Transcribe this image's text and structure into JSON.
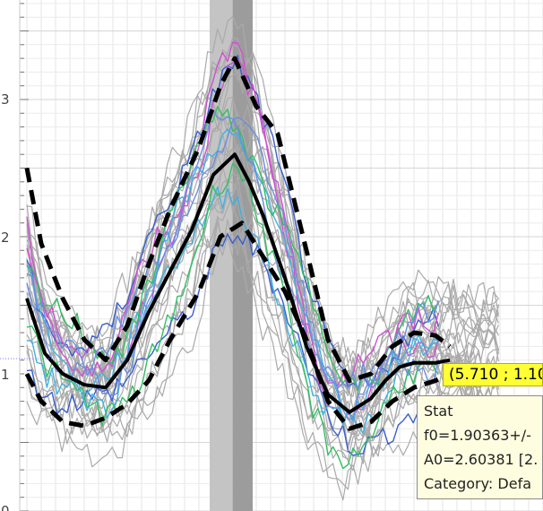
{
  "chart_data": {
    "type": "line",
    "title": "",
    "xlabel": "",
    "ylabel": "",
    "xlim": [
      0.0,
      7.0
    ],
    "ylim": [
      0,
      3.6
    ],
    "y_ticks": [
      "3",
      "2",
      "1",
      "0"
    ],
    "grid": true,
    "highlight_bands": [
      {
        "x": [
          2.55,
          2.87
        ],
        "color": "#c4c4c4"
      },
      {
        "x": [
          2.87,
          3.15
        ],
        "color": "#9c9c9c"
      }
    ],
    "series": [
      {
        "role": "mean",
        "x": [
          0.0,
          0.25,
          0.5,
          0.8,
          1.1,
          1.4,
          1.7,
          2.0,
          2.3,
          2.6,
          2.9,
          3.1,
          3.3,
          3.6,
          3.9,
          4.2,
          4.5,
          4.8,
          5.0,
          5.2,
          5.4,
          5.7,
          5.9
        ],
        "values": [
          1.55,
          1.15,
          1.0,
          0.92,
          0.9,
          1.1,
          1.45,
          1.75,
          2.05,
          2.45,
          2.6,
          2.4,
          2.15,
          1.7,
          1.2,
          0.85,
          0.72,
          0.82,
          0.95,
          1.05,
          1.08,
          1.08,
          1.1
        ]
      },
      {
        "role": "upper",
        "x": [
          0.0,
          0.2,
          0.5,
          0.8,
          1.1,
          1.4,
          1.7,
          2.0,
          2.4,
          2.7,
          2.9,
          3.2,
          3.5,
          3.9,
          4.2,
          4.5,
          4.8,
          5.1,
          5.4,
          5.7,
          5.9
        ],
        "values": [
          2.5,
          1.95,
          1.55,
          1.25,
          1.1,
          1.35,
          1.8,
          2.2,
          2.65,
          3.1,
          3.3,
          2.95,
          2.75,
          1.9,
          1.25,
          0.95,
          1.0,
          1.2,
          1.3,
          1.28,
          1.2
        ]
      },
      {
        "role": "lower",
        "x": [
          0.0,
          0.2,
          0.5,
          0.8,
          1.1,
          1.4,
          1.7,
          2.0,
          2.4,
          2.7,
          3.0,
          3.3,
          3.6,
          3.9,
          4.2,
          4.5,
          4.8,
          5.1,
          5.4,
          5.7,
          5.9
        ],
        "values": [
          1.0,
          0.8,
          0.65,
          0.62,
          0.68,
          0.78,
          0.95,
          1.25,
          1.6,
          2.0,
          2.1,
          1.85,
          1.6,
          1.25,
          0.8,
          0.6,
          0.65,
          0.8,
          0.9,
          0.95,
          1.0
        ]
      }
    ]
  },
  "cursor_readout": "(5.710 ; 1.10",
  "tooltip": {
    "title": "Stat",
    "line1": "f0=1.90363+/-",
    "line2": "A0=2.60381 [2.",
    "line3": "Category: Defa"
  },
  "colors": {
    "grid": "#e4e4e4",
    "trial_lines": "#aaaaaa",
    "mean": "#000000",
    "readout_bg": "#ffff33",
    "tooltip_bg": "#fffde0",
    "colored_traces": [
      "#3a5fd0",
      "#d050d0",
      "#40b0e0",
      "#30c060",
      "#6b8ee0"
    ]
  }
}
